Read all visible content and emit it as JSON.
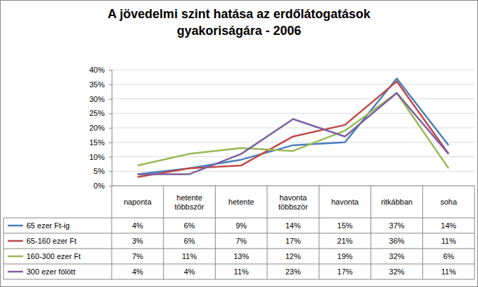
{
  "chart_data": {
    "type": "line",
    "title": "A jövedelmi szint hatása az erdőlátogatások gyakoriságára - 2006",
    "categories": [
      "naponta",
      "hetente többször",
      "hetente",
      "havonta többször",
      "havonta",
      "ritkábban",
      "soha"
    ],
    "series": [
      {
        "name": "65 ezer Ft-ig",
        "color": "#4a7ebb",
        "values": [
          4,
          6,
          9,
          14,
          15,
          37,
          14
        ],
        "value_labels": [
          "4%",
          "6%",
          "9%",
          "14%",
          "15%",
          "37%",
          "14%"
        ]
      },
      {
        "name": "65-160 ezer Ft",
        "color": "#be4b48",
        "values": [
          3,
          6,
          7,
          17,
          21,
          36,
          11
        ],
        "value_labels": [
          "3%",
          "6%",
          "7%",
          "17%",
          "21%",
          "36%",
          "11%"
        ]
      },
      {
        "name": "160-300 ezer Ft",
        "color": "#98b954",
        "values": [
          7,
          11,
          13,
          12,
          19,
          32,
          6
        ],
        "value_labels": [
          "7%",
          "11%",
          "13%",
          "12%",
          "19%",
          "32%",
          "6%"
        ]
      },
      {
        "name": "300 ezer fölött",
        "color": "#7d60a0",
        "values": [
          4,
          4,
          11,
          23,
          17,
          32,
          11
        ],
        "value_labels": [
          "4%",
          "4%",
          "11%",
          "23%",
          "17%",
          "32%",
          "11%"
        ]
      }
    ],
    "ylim": [
      0,
      40
    ],
    "yticks": [
      {
        "value": 0,
        "label": "0%"
      },
      {
        "value": 5,
        "label": "5%"
      },
      {
        "value": 10,
        "label": "10%"
      },
      {
        "value": 15,
        "label": "15%"
      },
      {
        "value": 20,
        "label": "20%"
      },
      {
        "value": 25,
        "label": "25%"
      },
      {
        "value": 30,
        "label": "30%"
      },
      {
        "value": 35,
        "label": "35%"
      },
      {
        "value": 40,
        "label": "40%"
      }
    ],
    "grid": true
  }
}
